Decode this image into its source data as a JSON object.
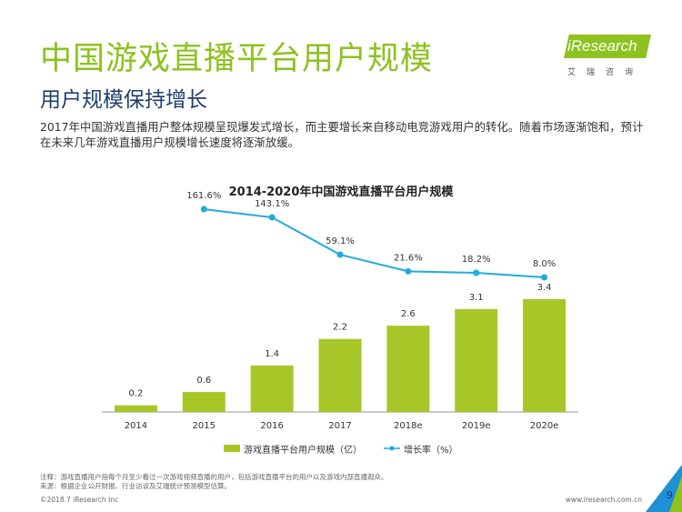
{
  "header": {
    "title": "中国游戏直播平台用户规模",
    "subtitle": "用户规模保持增长",
    "description": "2017年中国游戏直播用户整体规模呈现爆发式增长，而主要增长来自移动电竞游戏用户的转化。随着市场逐渐饱和，预计在未来几年游戏直播用户规模增长速度将逐渐放缓。"
  },
  "logo": {
    "name": "iResearch",
    "subtitle": "艾瑞咨询"
  },
  "chart_data": {
    "type": "bar",
    "title": "2014-2020年中国游戏直播平台用户规模",
    "categories": [
      "2014",
      "2015",
      "2016",
      "2017",
      "2018e",
      "2019e",
      "2020e"
    ],
    "series": [
      {
        "name": "游戏直播平台用户规模（亿）",
        "type": "bar",
        "values": [
          0.2,
          0.6,
          1.4,
          2.2,
          2.6,
          3.1,
          3.4
        ],
        "labels": [
          "0.2",
          "0.6",
          "1.4",
          "2.2",
          "2.6",
          "3.1",
          "3.4"
        ],
        "color": "#a7c728"
      },
      {
        "name": "增长率（%）",
        "type": "line",
        "values": [
          null,
          161.6,
          143.1,
          59.1,
          21.6,
          18.2,
          8.0
        ],
        "labels": [
          "",
          "161.6%",
          "143.1%",
          "59.1%",
          "21.6%",
          "18.2%",
          "8.0%"
        ],
        "color": "#21a9e1"
      }
    ],
    "legend_position": "bottom",
    "grid": false
  },
  "footer": {
    "note": "注释：游戏直播用户指每个月至少看过一次游戏视频直播的用户，包括游戏直播平台的用户以及游戏内部直播观众。",
    "source": "来源：根据企业公开财报、行业访谈及艾瑞统计预测模型估算。",
    "copyright": "©2018.7 iResearch Inc",
    "website": "www.iresearch.com.cn",
    "page": "9"
  },
  "colors": {
    "title": "#8dc21f",
    "subtitle": "#1f3f6e",
    "bar": "#a7c728",
    "line": "#21a9e1",
    "corner": "#1f8fd6"
  }
}
